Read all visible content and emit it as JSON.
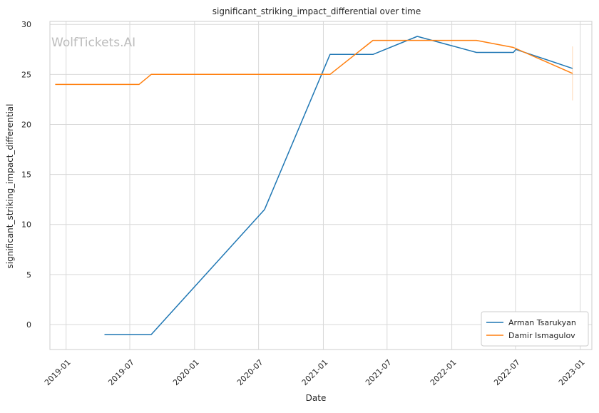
{
  "chart_data": {
    "type": "line",
    "title": "significant_striking_impact_differential over time",
    "xlabel": "Date",
    "ylabel": "significant_striking_impact_differential",
    "watermark": "WolfTickets.AI",
    "x_ticks": [
      "2019-01",
      "2019-07",
      "2020-01",
      "2020-07",
      "2021-01",
      "2021-07",
      "2022-01",
      "2022-07",
      "2023-01"
    ],
    "y_ticks": [
      0,
      5,
      10,
      15,
      20,
      25,
      30
    ],
    "xlim": [
      "2018-11-16",
      "2023-02-03"
    ],
    "ylim": [
      -2.5,
      30.3
    ],
    "grid": true,
    "legend_position": "bottom-right",
    "series": [
      {
        "name": "Arman Tsarukyan",
        "color": "#1f77b4",
        "points": [
          [
            "2019-04-20",
            -1.0
          ],
          [
            "2019-08-31",
            -1.0
          ],
          [
            "2020-07-18",
            11.5
          ],
          [
            "2021-01-20",
            27.0
          ],
          [
            "2021-05-22",
            27.0
          ],
          [
            "2021-09-25",
            28.8
          ],
          [
            "2022-03-12",
            27.2
          ],
          [
            "2022-06-25",
            27.2
          ],
          [
            "2022-07-02",
            27.5
          ],
          [
            "2022-12-10",
            25.6
          ]
        ]
      },
      {
        "name": "Damir Ismagulov",
        "color": "#ff7f0e",
        "points": [
          [
            "2018-12-01",
            24.0
          ],
          [
            "2019-07-27",
            24.0
          ],
          [
            "2019-08-31",
            25.0
          ],
          [
            "2021-01-20",
            25.0
          ],
          [
            "2021-05-22",
            28.4
          ],
          [
            "2022-03-12",
            28.4
          ],
          [
            "2022-06-25",
            27.7
          ],
          [
            "2022-12-10",
            25.1
          ]
        ]
      }
    ],
    "annotations": [
      {
        "type": "error-bar",
        "x": "2022-12-10",
        "y_low": 22.4,
        "y_high": 27.8,
        "color": "#ff7f0e"
      }
    ]
  }
}
